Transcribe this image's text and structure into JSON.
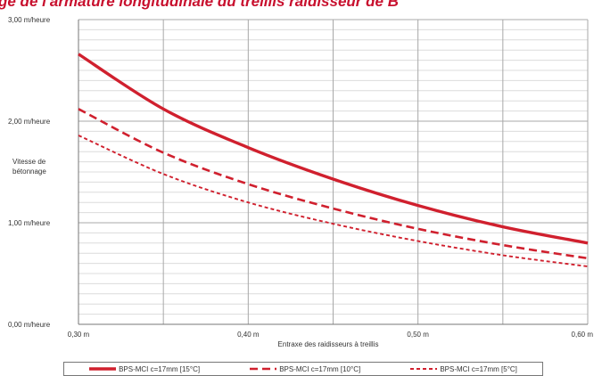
{
  "page_title": "ge de l'armature longitudinale du treillis raidisseur de B",
  "chart_data": {
    "type": "line",
    "title": "",
    "xlabel": "Entraxe des raidisseurs à treillis",
    "ylabel": "Vitesse de bétonnage",
    "xlim": [
      0.3,
      0.6
    ],
    "ylim": [
      0,
      3
    ],
    "grid": true,
    "x_ticks": [
      {
        "value": 0.3,
        "label": "0,30 m"
      },
      {
        "value": 0.4,
        "label": "0,40 m"
      },
      {
        "value": 0.5,
        "label": "0,50 m"
      },
      {
        "value": 0.6,
        "label": "0,60 m"
      }
    ],
    "y_ticks": [
      {
        "value": 0,
        "label": "0,00 m/heure"
      },
      {
        "value": 1,
        "label": "1,00 m/heure"
      },
      {
        "value": 2,
        "label": "2,00 m/heure"
      },
      {
        "value": 3,
        "label": "3,00 m/heure"
      }
    ],
    "legend_position": "bottom",
    "series": [
      {
        "name": "BPS-MCI c=17mm [15°C]",
        "style": "solid",
        "color": "#d0202e",
        "x": [
          0.3,
          0.35,
          0.4,
          0.45,
          0.5,
          0.55,
          0.6
        ],
        "y": [
          2.66,
          2.12,
          1.74,
          1.43,
          1.17,
          0.96,
          0.8
        ]
      },
      {
        "name": "BPS-MCI c=17mm [10°C]",
        "style": "dashed",
        "color": "#d0202e",
        "x": [
          0.3,
          0.35,
          0.4,
          0.45,
          0.5,
          0.55,
          0.6
        ],
        "y": [
          2.12,
          1.69,
          1.38,
          1.14,
          0.94,
          0.78,
          0.65
        ]
      },
      {
        "name": "BPS-MCI c=17mm [5°C]",
        "style": "dotted",
        "color": "#d0202e",
        "x": [
          0.3,
          0.35,
          0.4,
          0.45,
          0.5,
          0.55,
          0.6
        ],
        "y": [
          1.86,
          1.48,
          1.2,
          0.99,
          0.82,
          0.68,
          0.57
        ]
      }
    ]
  }
}
